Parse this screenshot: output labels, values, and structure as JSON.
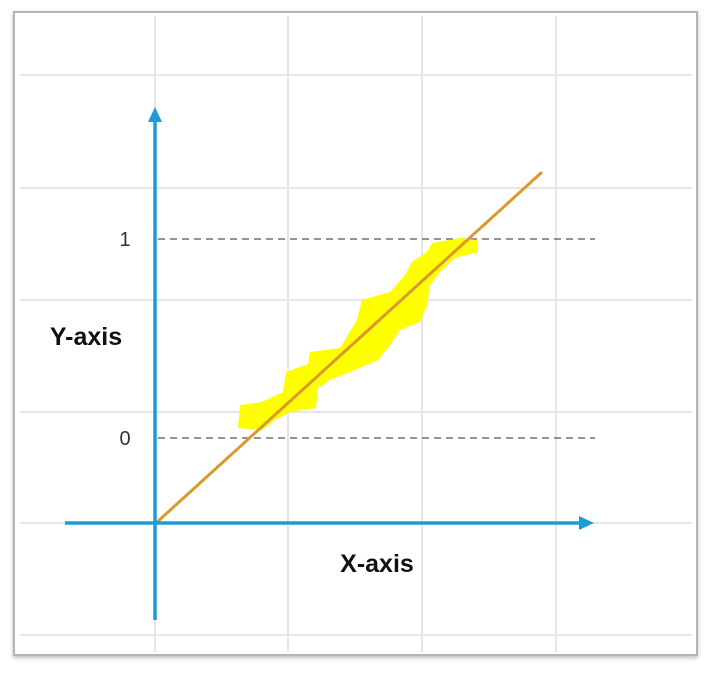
{
  "axes": {
    "x_label": "X-axis",
    "y_label": "Y-axis"
  },
  "levels": [
    {
      "label": "1"
    },
    {
      "label": "0"
    }
  ],
  "colors": {
    "axis": "#1e9ad6",
    "line": "#d99a2b",
    "highlight": "#ffff00",
    "grid": "#e6e6e6",
    "border": "#b5b5b5",
    "dash": "#555555"
  }
}
